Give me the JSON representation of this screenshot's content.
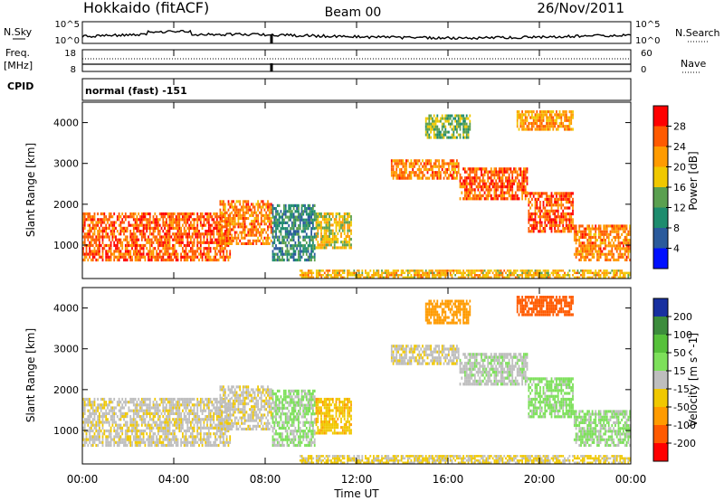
{
  "header": {
    "station": "Hokkaido (fitACF)",
    "beam": "Beam 00",
    "date": "26/Nov/2011"
  },
  "panels": {
    "nsky": {
      "left_label": "N.Sky",
      "ticks_left": [
        "10^5",
        "10^0"
      ],
      "ticks_right": [
        "10^5",
        "10^0"
      ],
      "right_label": "N.Search"
    },
    "freq": {
      "left_label_1": "Freq.",
      "left_label_2": "[MHz]",
      "ticks_left": [
        "18",
        "8"
      ],
      "ticks_right": [
        "60",
        "0"
      ],
      "right_label": "Nave"
    },
    "cpid": {
      "left_label": "CPID",
      "value": "normal (fast) -151"
    }
  },
  "power_panel": {
    "ylabel": "Slant Range [km]",
    "colorbar_label": "Power [dB]",
    "colorbar_ticks": [
      "28",
      "24",
      "20",
      "16",
      "12",
      "8",
      "4"
    ],
    "colorbar_colors": [
      "#ff0000",
      "#ff5a00",
      "#ff9b00",
      "#f0c800",
      "#5aa050",
      "#1e8c6e",
      "#2a5a9c",
      "#0010ff"
    ]
  },
  "velocity_panel": {
    "ylabel": "Slant Range [km]",
    "colorbar_label": "Velocity [m s^-1]",
    "colorbar_ticks": [
      "200",
      "100",
      "50",
      "15",
      "-15",
      "-50",
      "-100",
      "-200"
    ],
    "colorbar_colors": [
      "#1830a0",
      "#3c8c3c",
      "#56c13a",
      "#7de05a",
      "#bebebe",
      "#f0c800",
      "#ff9b00",
      "#ff5a00",
      "#ff0000"
    ]
  },
  "xaxis": {
    "label": "Time UT",
    "ticks": [
      "00:00",
      "04:00",
      "08:00",
      "12:00",
      "16:00",
      "20:00",
      "00:00"
    ]
  },
  "chart_data": {
    "type": "heatmap",
    "title": "Hokkaido (fitACF) Beam 00 26/Nov/2011",
    "xlabel": "Time UT",
    "ylabel": "Slant Range [km]",
    "xlim": [
      "00:00",
      "24:00"
    ],
    "ylim": [
      180,
      4500
    ],
    "y_ticks": [
      1000,
      2000,
      3000,
      4000
    ],
    "power_colorbar": {
      "label": "Power [dB]",
      "range": [
        0,
        30
      ],
      "ticks": [
        4,
        8,
        12,
        16,
        20,
        24,
        28
      ]
    },
    "velocity_colorbar": {
      "label": "Velocity [m s^-1]",
      "range": [
        -250,
        250
      ],
      "ticks": [
        -200,
        -100,
        -50,
        -15,
        15,
        50,
        100,
        200
      ]
    },
    "regions": [
      {
        "t0": 0.0,
        "t1": 6.5,
        "r0": 600,
        "r1": 1800,
        "power_level": 26,
        "velocity_level": -5
      },
      {
        "t0": 6.0,
        "t1": 8.3,
        "r0": 1000,
        "r1": 2100,
        "power_level": 24,
        "velocity_level": -5
      },
      {
        "t0": 8.3,
        "t1": 10.2,
        "r0": 600,
        "r1": 2000,
        "power_level": 10,
        "velocity_level": 20
      },
      {
        "t0": 10.2,
        "t1": 11.8,
        "r0": 900,
        "r1": 1800,
        "power_level": 18,
        "velocity_level": -40
      },
      {
        "t0": 9.5,
        "t1": 24.0,
        "r0": 180,
        "r1": 400,
        "power_level": 20,
        "velocity_level": -20
      },
      {
        "t0": 13.5,
        "t1": 16.5,
        "r0": 2600,
        "r1": 3100,
        "power_level": 24,
        "velocity_level": -5
      },
      {
        "t0": 16.5,
        "t1": 19.5,
        "r0": 2100,
        "r1": 2900,
        "power_level": 26,
        "velocity_level": 5
      },
      {
        "t0": 19.5,
        "t1": 21.5,
        "r0": 1300,
        "r1": 2300,
        "power_level": 26,
        "velocity_level": 30
      },
      {
        "t0": 21.5,
        "t1": 24.0,
        "r0": 600,
        "r1": 1500,
        "power_level": 24,
        "velocity_level": 20
      },
      {
        "t0": 15.0,
        "t1": 17.0,
        "r0": 3600,
        "r1": 4200,
        "power_level": 14,
        "velocity_level": -80
      },
      {
        "t0": 19.0,
        "t1": 21.5,
        "r0": 3800,
        "r1": 4300,
        "power_level": 22,
        "velocity_level": -150
      }
    ]
  }
}
